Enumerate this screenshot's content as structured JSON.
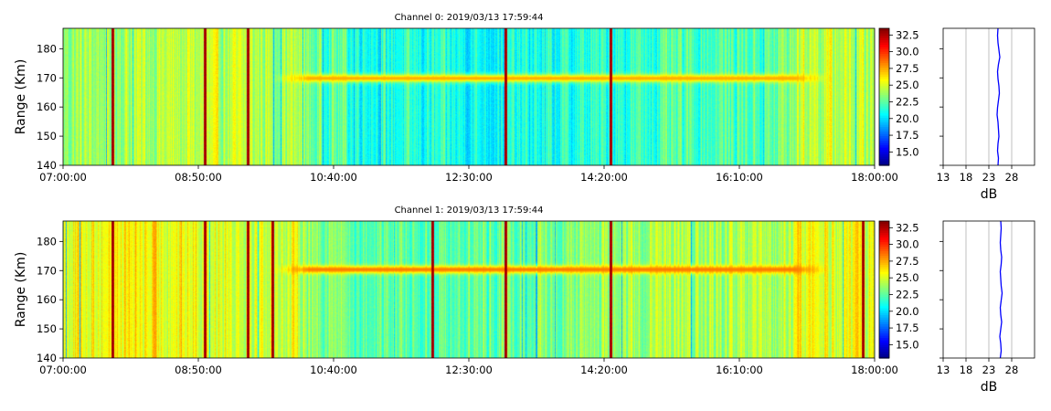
{
  "chart_data": [
    {
      "type": "heatmap",
      "title": "Channel 0: 2019/03/13 17:59:44",
      "ylabel": "Range (Km)",
      "xlim": [
        "07:00:00",
        "18:00:00"
      ],
      "xticks": [
        "07:00:00",
        "08:50:00",
        "10:40:00",
        "12:30:00",
        "14:20:00",
        "16:10:00",
        "18:00:00"
      ],
      "ylim": [
        140,
        187
      ],
      "yticks": [
        140,
        150,
        160,
        170,
        180
      ],
      "colorbar": {
        "clim": [
          13,
          33.5
        ],
        "ticks": [
          "15.0",
          "17.5",
          "20.0",
          "22.5",
          "25.0",
          "27.5",
          "30.0",
          "32.5"
        ],
        "colormap": "jet"
      },
      "features": {
        "background_db": 22.5,
        "echo_layer": {
          "range_km": 170,
          "start": "09:50:00",
          "end": "17:25:00",
          "db": 27.5
        },
        "strong_columns": [
          "07:40:00",
          "08:55:00",
          "09:30:00",
          "13:00:00",
          "14:25:00"
        ]
      },
      "profile": {
        "xlabel": "dB",
        "xticks": [
          13,
          18,
          23,
          28
        ],
        "xlim": [
          13,
          33
        ],
        "ylim": [
          140,
          187
        ],
        "color": "#0000ff",
        "values": [
          25.0,
          25.1,
          24.9,
          25.0,
          25.2,
          25.1,
          25.0,
          24.8,
          24.9,
          25.1,
          25.3,
          25.2,
          25.0,
          24.9,
          25.1,
          25.4,
          25.2,
          25.0,
          24.9,
          25.0
        ]
      }
    },
    {
      "type": "heatmap",
      "title": "Channel 1: 2019/03/13 17:59:44",
      "ylabel": "Range (Km)",
      "xlim": [
        "07:00:00",
        "18:00:00"
      ],
      "xticks": [
        "07:00:00",
        "08:50:00",
        "10:40:00",
        "12:30:00",
        "14:20:00",
        "16:10:00",
        "18:00:00"
      ],
      "ylim": [
        140,
        187
      ],
      "yticks": [
        140,
        150,
        160,
        170,
        180
      ],
      "colorbar": {
        "clim": [
          13,
          33.5
        ],
        "ticks": [
          "15.0",
          "17.5",
          "20.0",
          "22.5",
          "25.0",
          "27.5",
          "30.0",
          "32.5"
        ],
        "colormap": "jet"
      },
      "features": {
        "background_db": 24,
        "echo_layer": {
          "range_km": 170.5,
          "start": "09:50:00",
          "end": "17:25:00",
          "db": 28.5
        },
        "strong_columns": [
          "07:40:00",
          "08:55:00",
          "09:30:00",
          "09:50:00",
          "12:00:00",
          "13:00:00",
          "14:25:00",
          "17:50:00"
        ]
      },
      "profile": {
        "xlabel": "dB",
        "xticks": [
          13,
          18,
          23,
          28
        ],
        "xlim": [
          13,
          33
        ],
        "ylim": [
          140,
          187
        ],
        "color": "#0000ff",
        "values": [
          25.5,
          25.7,
          25.6,
          25.4,
          25.6,
          25.8,
          25.6,
          25.5,
          25.7,
          25.9,
          25.7,
          25.6,
          25.5,
          25.7,
          25.8,
          25.6,
          25.5,
          25.6,
          25.7,
          25.6
        ]
      }
    }
  ]
}
